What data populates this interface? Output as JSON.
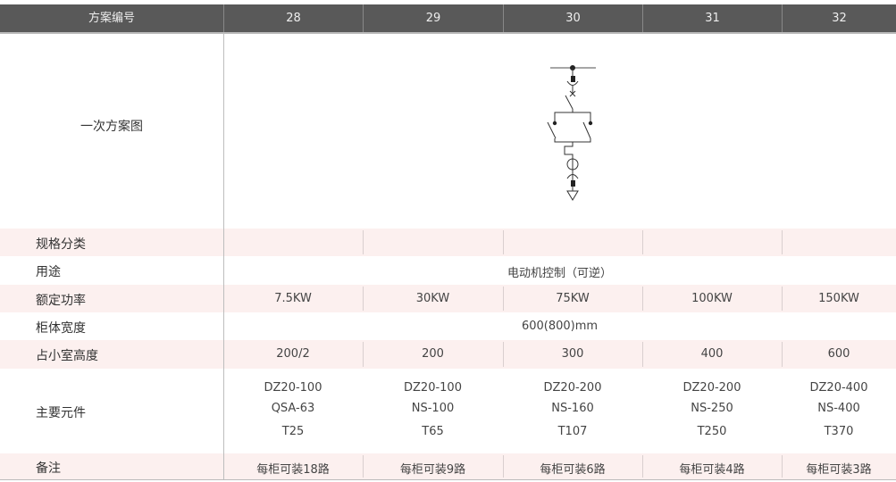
{
  "header": {
    "label": "方案编号",
    "columns": [
      "28",
      "29",
      "30",
      "31",
      "32"
    ]
  },
  "diagram_row": {
    "label": "一次方案图",
    "diagram": "single-line-diagram: busbar, disconnect, breaker, reversing contactors, thermal relay, current transformer, cable outlet"
  },
  "rows": [
    {
      "label": "规格分类",
      "values": [
        "",
        "",
        "",
        "",
        ""
      ],
      "pink": true
    },
    {
      "label": "用途",
      "span": "电动机控制（可逆）"
    },
    {
      "label": "额定功率",
      "values": [
        "7.5KW",
        "30KW",
        "75KW",
        "100KW",
        "150KW"
      ],
      "pink": true
    },
    {
      "label": "柜体宽度",
      "span": "600(800)mm"
    },
    {
      "label": "占小室高度",
      "values": [
        "200/2",
        "200",
        "300",
        "400",
        "600"
      ],
      "pink": true
    },
    {
      "label": "主要元件",
      "values": [
        [
          "DZ20-100",
          "QSA-63",
          "T25"
        ],
        [
          "DZ20-100",
          "NS-100",
          "T65"
        ],
        [
          "DZ20-200",
          "NS-160",
          "T107"
        ],
        [
          "DZ20-200",
          "NS-250",
          "T250"
        ],
        [
          "DZ20-400",
          "NS-400",
          "T370"
        ]
      ]
    },
    {
      "label": "备注",
      "values": [
        "每柜可装18路",
        "每柜可装9路",
        "每柜可装6路",
        "每柜可装4路",
        "每柜可装3路"
      ],
      "pink": true
    }
  ],
  "colors": {
    "header_bg": "#595959",
    "pink_row": "#fcf0ef"
  }
}
